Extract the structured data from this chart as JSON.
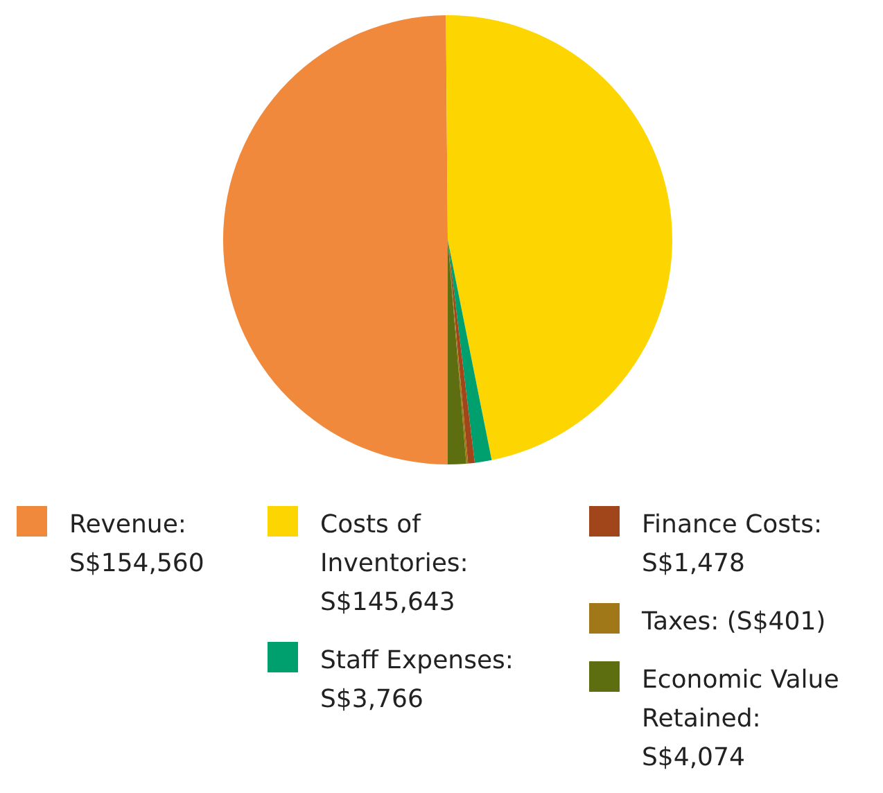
{
  "chart_data": {
    "type": "pie",
    "legend": "bottom",
    "categories": [
      "Revenue: S$154,560",
      "Costs of Inventories: S$145,643",
      "Staff Expenses: S$3,766",
      "Finance Costs: S$1,478",
      "Taxes: (S$401)",
      "Economic Value Retained: S$4,074"
    ],
    "values": [
      154560,
      145643,
      3766,
      1478,
      401,
      4074
    ],
    "colors": [
      "#f0893b",
      "#fdd500",
      "#00a06e",
      "#a0461a",
      "#a07818",
      "#5c6e10"
    ]
  }
}
